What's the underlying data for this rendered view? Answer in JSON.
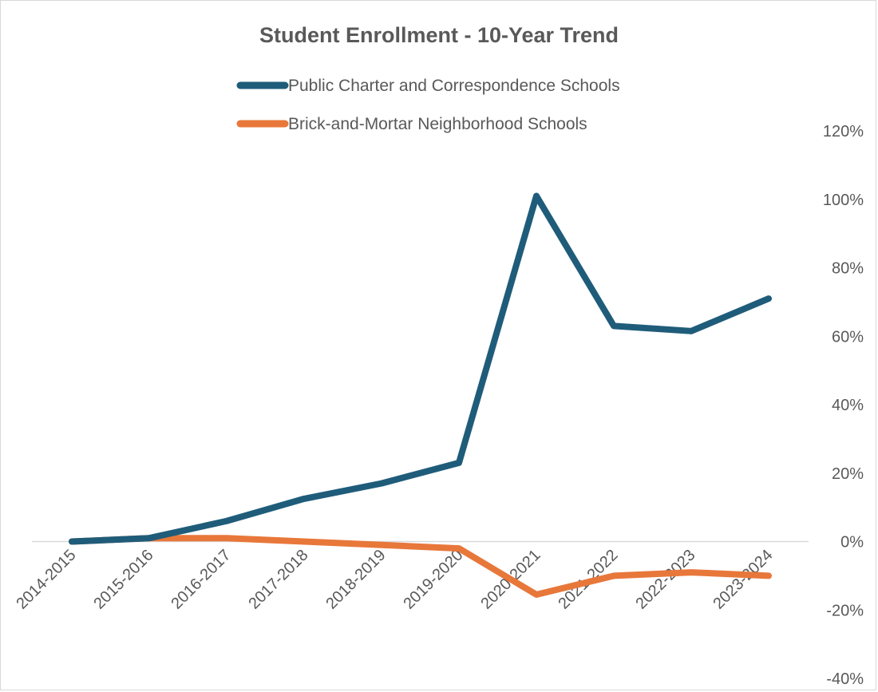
{
  "chart_data": {
    "type": "line",
    "title": "Student Enrollment - 10-Year Trend",
    "xlabel": "",
    "ylabel": "",
    "categories": [
      "2014-2015",
      "2015-2016",
      "2016-2017",
      "2017-2018",
      "2018-2019",
      "2019-2020",
      "2020-2021",
      "2021-2022",
      "2022-2023",
      "2023-2024"
    ],
    "series": [
      {
        "name": "Public Charter and Correspondence Schools",
        "color": "#1f5c7a",
        "values": [
          0,
          1,
          6,
          12.5,
          17,
          23,
          101,
          63,
          61.5,
          71
        ]
      },
      {
        "name": "Brick-and-Mortar Neighborhood Schools",
        "color": "#e8773a",
        "values": [
          0,
          1,
          1,
          0,
          -1,
          -2,
          -15.5,
          -10,
          -9,
          -10
        ]
      }
    ],
    "ylim": [
      -40,
      120
    ],
    "yticks": [
      -40,
      -20,
      0,
      20,
      40,
      60,
      80,
      100,
      120
    ],
    "ytick_labels": [
      "-40%",
      "-20%",
      "0%",
      "20%",
      "40%",
      "60%",
      "80%",
      "100%",
      "120%"
    ],
    "y_axis_side": "right",
    "legend_position": "top",
    "grid": false
  }
}
